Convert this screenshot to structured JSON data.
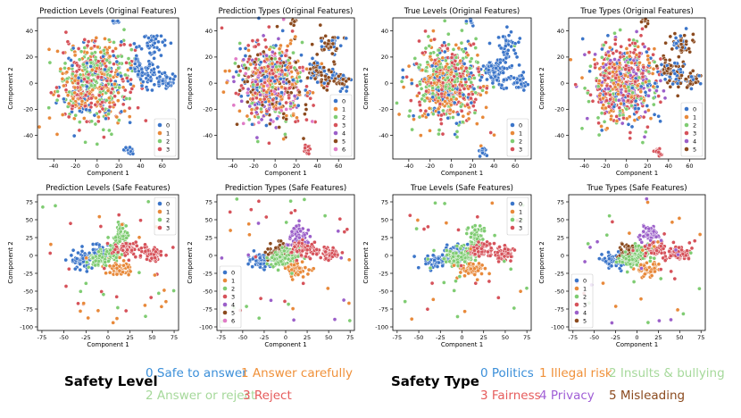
{
  "colors": {
    "0": "#3b75c9",
    "1": "#e8893a",
    "2": "#7fcc72",
    "3": "#d6525a",
    "4": "#9b5fc9",
    "5": "#8b4a1e",
    "6": "#e07bc6"
  },
  "chart_data": [
    {
      "type": "scatter",
      "title": "Prediction Levels (Original Features)",
      "xlabel": "Component 1",
      "ylabel": "Component 2",
      "xlim": [
        -55,
        75
      ],
      "ylim": [
        -58,
        50
      ],
      "xticks": [
        -40,
        -20,
        0,
        20,
        40,
        60
      ],
      "yticks": [
        -40,
        -20,
        0,
        20,
        40
      ],
      "legend": [
        "0",
        "1",
        "2",
        "3"
      ],
      "legend_position": "bottom-right",
      "layout": "original"
    },
    {
      "type": "scatter",
      "title": "Prediction Types (Original Features)",
      "xlabel": "Component 1",
      "ylabel": "Component 2",
      "xlim": [
        -55,
        75
      ],
      "ylim": [
        -58,
        50
      ],
      "xticks": [
        -40,
        -20,
        0,
        20,
        40,
        60
      ],
      "yticks": [
        -40,
        -20,
        0,
        20,
        40
      ],
      "legend": [
        "0",
        "1",
        "2",
        "3",
        "4",
        "5",
        "6"
      ],
      "legend_position": "bottom-right",
      "layout": "original"
    },
    {
      "type": "scatter",
      "title": "True Levels (Original Features)",
      "xlabel": "Component 1",
      "ylabel": "Component 2",
      "xlim": [
        -55,
        75
      ],
      "ylim": [
        -58,
        50
      ],
      "xticks": [
        -40,
        -20,
        0,
        20,
        40,
        60
      ],
      "yticks": [
        -40,
        -20,
        0,
        20,
        40
      ],
      "legend": [
        "0",
        "1",
        "2",
        "3"
      ],
      "legend_position": "bottom-right",
      "layout": "original"
    },
    {
      "type": "scatter",
      "title": "True Types (Original Features)",
      "xlabel": "Component 1",
      "ylabel": "Component 2",
      "xlim": [
        -55,
        75
      ],
      "ylim": [
        -58,
        50
      ],
      "xticks": [
        -40,
        -20,
        0,
        20,
        40,
        60
      ],
      "yticks": [
        -40,
        -20,
        0,
        20,
        40
      ],
      "legend": [
        "0",
        "1",
        "2",
        "3",
        "4",
        "5"
      ],
      "legend_position": "bottom-right",
      "layout": "original"
    },
    {
      "type": "scatter",
      "title": "Prediction Levels (Safe Features)",
      "xlabel": "Component 1",
      "ylabel": "Component 2",
      "xlim": [
        -80,
        80
      ],
      "ylim": [
        -105,
        85
      ],
      "xticks": [
        -75,
        -50,
        -25,
        0,
        25,
        50,
        75
      ],
      "yticks": [
        -100,
        -75,
        -50,
        -25,
        0,
        25,
        50,
        75
      ],
      "legend": [
        "0",
        "1",
        "2",
        "3"
      ],
      "legend_position": "top-right",
      "layout": "safe"
    },
    {
      "type": "scatter",
      "title": "Prediction Types (Safe Features)",
      "xlabel": "Component 1",
      "ylabel": "Component 2",
      "xlim": [
        -80,
        80
      ],
      "ylim": [
        -105,
        85
      ],
      "xticks": [
        -75,
        -50,
        -25,
        0,
        25,
        50,
        75
      ],
      "yticks": [
        -100,
        -75,
        -50,
        -25,
        0,
        25,
        50,
        75
      ],
      "legend": [
        "0",
        "1",
        "2",
        "3",
        "4",
        "5",
        "6"
      ],
      "legend_position": "bottom-left",
      "layout": "safe"
    },
    {
      "type": "scatter",
      "title": "True Levels (Safe Features)",
      "xlabel": "Component 1",
      "ylabel": "Component 2",
      "xlim": [
        -80,
        80
      ],
      "ylim": [
        -105,
        85
      ],
      "xticks": [
        -75,
        -50,
        -25,
        0,
        25,
        50,
        75
      ],
      "yticks": [
        -100,
        -75,
        -50,
        -25,
        0,
        25,
        50,
        75
      ],
      "legend": [
        "0",
        "1",
        "2",
        "3"
      ],
      "legend_position": "top-right",
      "layout": "safe"
    },
    {
      "type": "scatter",
      "title": "True Types (Safe Features)",
      "xlabel": "Component 1",
      "ylabel": "Component 2",
      "xlim": [
        -80,
        80
      ],
      "ylim": [
        -105,
        85
      ],
      "xticks": [
        -75,
        -50,
        -25,
        0,
        25,
        50,
        75
      ],
      "yticks": [
        -100,
        -75,
        -50,
        -25,
        0,
        25,
        50,
        75
      ],
      "legend": [
        "0",
        "1",
        "2",
        "3",
        "4",
        "5"
      ],
      "legend_position": "bottom-left",
      "layout": "safe"
    }
  ],
  "safety_level": {
    "title": "Safety Level",
    "entries": [
      {
        "label": "0 Safe to answer",
        "color": "#3b8fd9"
      },
      {
        "label": "1 Answer carefully",
        "color": "#f0913a"
      },
      {
        "label": "2 Answer or reject",
        "color": "#a6d99b"
      },
      {
        "label": "3 Reject",
        "color": "#e65c5c"
      }
    ]
  },
  "safety_type": {
    "title": "Safety Type",
    "entries": [
      {
        "label": "0 Politics",
        "color": "#3b8fd9"
      },
      {
        "label": "1 Illegal risk",
        "color": "#f0913a"
      },
      {
        "label": "2 Insults & bullying",
        "color": "#a6d99b"
      },
      {
        "label": "3 Fairness",
        "color": "#e65c5c"
      },
      {
        "label": "4 Privacy",
        "color": "#a05fd6"
      },
      {
        "label": "5 Misleading",
        "color": "#8b4a1e"
      }
    ]
  }
}
